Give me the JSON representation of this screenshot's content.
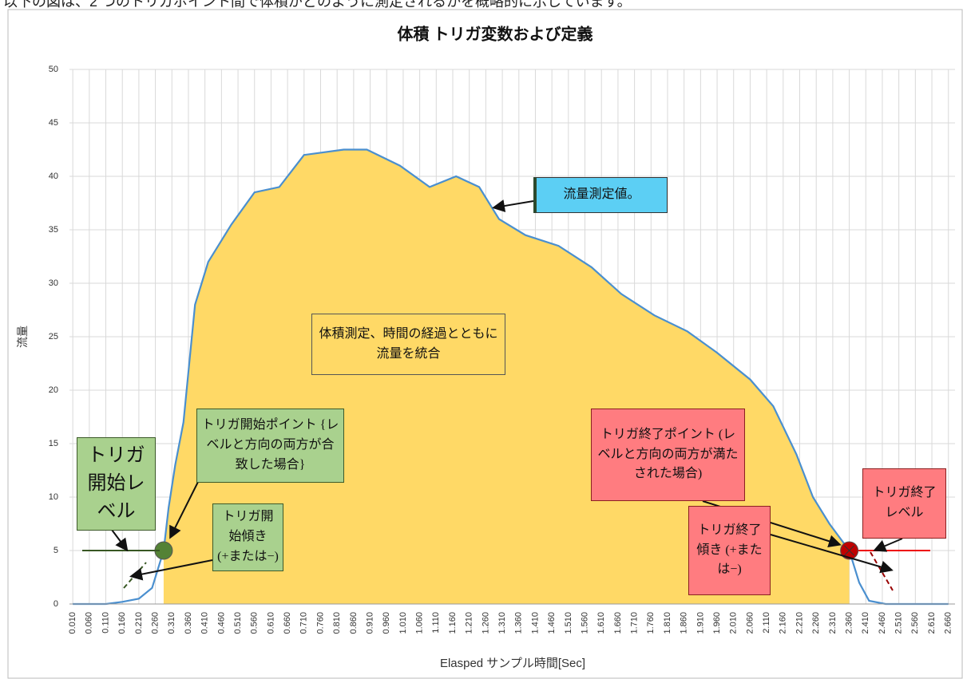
{
  "caption": "以下の図は、2 つのトリガポイント間で体積がどのように測定されるかを概略的に示しています。",
  "chart_data": {
    "type": "area",
    "title": "体積 トリガ変数および定義",
    "xlabel": "Elasped サンプル時間[Sec]",
    "ylabel": "流量",
    "x": [
      0.01,
      0.06,
      0.11,
      0.16,
      0.21,
      0.25,
      0.285,
      0.3,
      0.32,
      0.345,
      0.38,
      0.42,
      0.49,
      0.56,
      0.635,
      0.71,
      0.83,
      0.9,
      1.0,
      1.09,
      1.17,
      1.24,
      1.3,
      1.38,
      1.48,
      1.58,
      1.67,
      1.77,
      1.87,
      1.96,
      2.06,
      2.13,
      2.2,
      2.25,
      2.3,
      2.36,
      2.39,
      2.42,
      2.47,
      2.66
    ],
    "series": [
      {
        "color": "#4a8fcf",
        "fill": "#ffd966",
        "values": [
          0,
          0,
          0,
          0.2,
          0.5,
          1.5,
          5,
          9,
          13,
          17,
          28,
          32,
          35.5,
          38.5,
          39,
          42,
          42.5,
          42.5,
          41,
          39,
          40,
          39,
          36,
          34.5,
          33.5,
          31.5,
          29,
          27,
          25.5,
          23.5,
          21,
          18.5,
          14,
          10,
          7.5,
          5,
          2,
          0.3,
          0,
          0
        ]
      }
    ],
    "trigger_start": {
      "x": 0.285,
      "y": 5,
      "color": "#548235"
    },
    "trigger_end": {
      "x": 2.36,
      "y": 5,
      "color": "#c00000"
    },
    "xlim": [
      0,
      2.68
    ],
    "ylim": [
      0,
      50
    ],
    "yticks": [
      0,
      5,
      10,
      15,
      20,
      25,
      30,
      35,
      40,
      45,
      50
    ],
    "xticks": [
      {
        "value": 0.01,
        "label": "0.010"
      },
      {
        "value": 0.06,
        "label": "0.060"
      },
      {
        "value": 0.11,
        "label": "0.110"
      },
      {
        "value": 0.16,
        "label": "0.160"
      },
      {
        "value": 0.21,
        "label": "0.210"
      },
      {
        "value": 0.26,
        "label": "0.260"
      },
      {
        "value": 0.31,
        "label": "0.310"
      },
      {
        "value": 0.36,
        "label": "0.360"
      },
      {
        "value": 0.41,
        "label": "0.410"
      },
      {
        "value": 0.46,
        "label": "0.460"
      },
      {
        "value": 0.51,
        "label": "0.510"
      },
      {
        "value": 0.56,
        "label": "0.560"
      },
      {
        "value": 0.61,
        "label": "0.610"
      },
      {
        "value": 0.66,
        "label": "0.660"
      },
      {
        "value": 0.71,
        "label": "0.710"
      },
      {
        "value": 0.76,
        "label": "0.760"
      },
      {
        "value": 0.81,
        "label": "0.810"
      },
      {
        "value": 0.86,
        "label": "0.860"
      },
      {
        "value": 0.91,
        "label": "0.910"
      },
      {
        "value": 0.96,
        "label": "0.960"
      },
      {
        "value": 1.01,
        "label": "1.010"
      },
      {
        "value": 1.06,
        "label": "1.060"
      },
      {
        "value": 1.11,
        "label": "1.110"
      },
      {
        "value": 1.16,
        "label": "1.160"
      },
      {
        "value": 1.21,
        "label": "1.210"
      },
      {
        "value": 1.26,
        "label": "1.260"
      },
      {
        "value": 1.31,
        "label": "1.310"
      },
      {
        "value": 1.36,
        "label": "1.360"
      },
      {
        "value": 1.41,
        "label": "1.410"
      },
      {
        "value": 1.46,
        "label": "1.460"
      },
      {
        "value": 1.51,
        "label": "1.510"
      },
      {
        "value": 1.56,
        "label": "1.560"
      },
      {
        "value": 1.61,
        "label": "1.610"
      },
      {
        "value": 1.66,
        "label": "1.660"
      },
      {
        "value": 1.71,
        "label": "1.710"
      },
      {
        "value": 1.76,
        "label": "1.760"
      },
      {
        "value": 1.81,
        "label": "1.810"
      },
      {
        "value": 1.86,
        "label": "1.860"
      },
      {
        "value": 1.91,
        "label": "1.910"
      },
      {
        "value": 1.96,
        "label": "1.960"
      },
      {
        "value": 2.01,
        "label": "2.010"
      },
      {
        "value": 2.06,
        "label": "2.060"
      },
      {
        "value": 2.11,
        "label": "2.110"
      },
      {
        "value": 2.16,
        "label": "2.160"
      },
      {
        "value": 2.21,
        "label": "2.210"
      },
      {
        "value": 2.26,
        "label": "2.260"
      },
      {
        "value": 2.31,
        "label": "2.310"
      },
      {
        "value": 2.36,
        "label": "2.360"
      },
      {
        "value": 2.41,
        "label": "2.410"
      },
      {
        "value": 2.46,
        "label": "2.460"
      },
      {
        "value": 2.51,
        "label": "2.510"
      },
      {
        "value": 2.56,
        "label": "2.560"
      },
      {
        "value": 2.61,
        "label": "2.610"
      },
      {
        "value": 2.66,
        "label": "2.660"
      }
    ],
    "grid": true,
    "annotations": [
      {
        "text": "流量測定値。"
      },
      {
        "text": "体積測定、時間の経過とともに流量を統合"
      },
      {
        "text": "トリガ開始ポイント {レベルと方向の両方が合致した場合}"
      },
      {
        "text": "トリガ開始レベル"
      },
      {
        "text": "トリガ開始傾き (+または−)"
      },
      {
        "text": "トリガ終了ポイント (レベルと方向の両方が満たされた場合)"
      },
      {
        "text": "トリガ終了傾き (+または−)"
      },
      {
        "text": "トリガ終了レベル"
      }
    ]
  }
}
